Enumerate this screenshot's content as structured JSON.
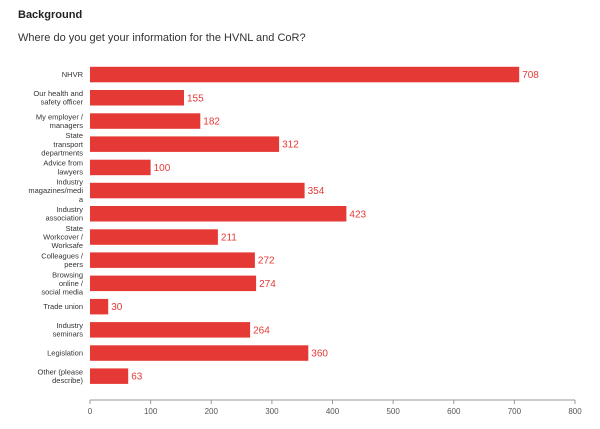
{
  "header": {
    "section": "Background",
    "question": "Where do you get your information for the HVNL and CoR?"
  },
  "colors": {
    "bar": "#e53935",
    "value_label": "#e53935",
    "axis": "#999999"
  },
  "chart_data": {
    "type": "bar",
    "orientation": "horizontal",
    "categories": [
      "NHVR",
      "Our health and safety officer",
      "My employer / managers",
      "State transport departments",
      "Advice from lawyers",
      "Industry magazines/media",
      "Industry association",
      "State Workcover / Worksafe",
      "Colleagues / peers",
      "Browsing online / social media",
      "Trade union",
      "Industry seminars",
      "Legislation",
      "Other (please describe)"
    ],
    "category_lines": [
      [
        "NHVR"
      ],
      [
        "Our health and",
        "safety officer"
      ],
      [
        "My employer /",
        "managers"
      ],
      [
        "State",
        "transport",
        "departments"
      ],
      [
        "Advice from",
        "lawyers"
      ],
      [
        "Industry",
        "magazines/medi",
        "a"
      ],
      [
        "Industry",
        "association"
      ],
      [
        "State",
        "Workcover /",
        "Worksafe"
      ],
      [
        "Colleagues /",
        "peers"
      ],
      [
        "Browsing",
        "online /",
        "social media"
      ],
      [
        "Trade union"
      ],
      [
        "Industry",
        "seminars"
      ],
      [
        "Legislation"
      ],
      [
        "Other (please",
        "describe)"
      ]
    ],
    "values": [
      708,
      155,
      182,
      312,
      100,
      354,
      423,
      211,
      272,
      274,
      30,
      264,
      360,
      63
    ],
    "xlim": [
      0,
      800
    ],
    "xticks": [
      0,
      100,
      200,
      300,
      400,
      500,
      600,
      700,
      800
    ],
    "grid": false,
    "data_labels": true
  }
}
